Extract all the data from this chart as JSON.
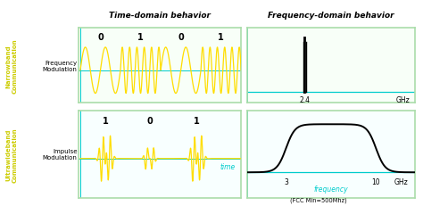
{
  "bg_color": "#ffffff",
  "cyan_color": "#00cccc",
  "yellow_color": "#ffdd00",
  "green_box_color": "#aaddaa",
  "panel_bg_top": "#f5fff5",
  "panel_bg_bot": "#f5ffff",
  "narrowband_label": "Narrowband\nCommunication",
  "narrowband_label_color": "#cccc00",
  "uwb_label": "Ultrawideband\nCommunication",
  "uwb_label_color": "#cccc00",
  "time_domain_title": "Time-domain behavior",
  "freq_domain_title": "Frequency-domain behavior",
  "freq_mod_label": "Frequency\nModulation",
  "impulse_mod_label": "Impulse\nModulation",
  "nb_bits": [
    "0",
    "1",
    "0",
    "1"
  ],
  "uwb_bits": [
    "1",
    "0",
    "1"
  ],
  "time_label": "time",
  "frequency_label": "frequency",
  "fcc_note": "(FCC Min=500Mhz)"
}
